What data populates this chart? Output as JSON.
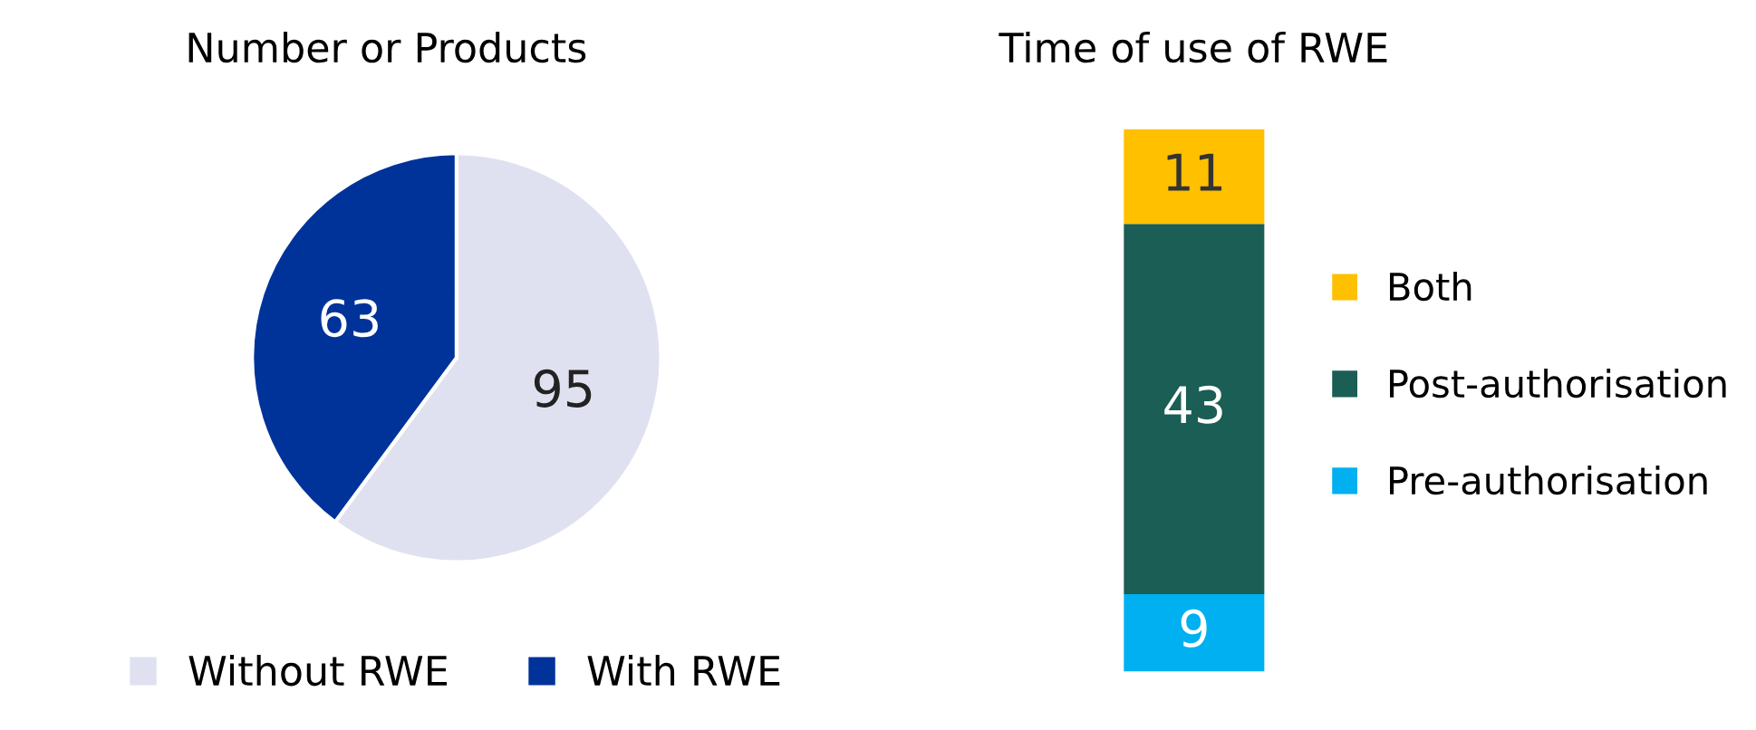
{
  "chart_data": [
    {
      "type": "pie",
      "title": "Number or Products",
      "categories": [
        "Without RWE",
        "With RWE"
      ],
      "values": [
        95,
        63
      ],
      "colors": [
        "#e0e1f0",
        "#00339a"
      ],
      "data_labels": true,
      "legend": "bottom"
    },
    {
      "type": "bar",
      "title": "Time of use of RWE",
      "categories": [
        null
      ],
      "stacked": true,
      "data_labels": true,
      "legend": "right",
      "series": [
        {
          "name": "Pre-authorisation",
          "color": "#00b0f0",
          "values": [
            9
          ]
        },
        {
          "name": "Post-authorisation",
          "color": "#1a5e55",
          "values": [
            43
          ]
        },
        {
          "name": "Both",
          "color": "#ffc000",
          "values": [
            11
          ]
        }
      ]
    }
  ]
}
